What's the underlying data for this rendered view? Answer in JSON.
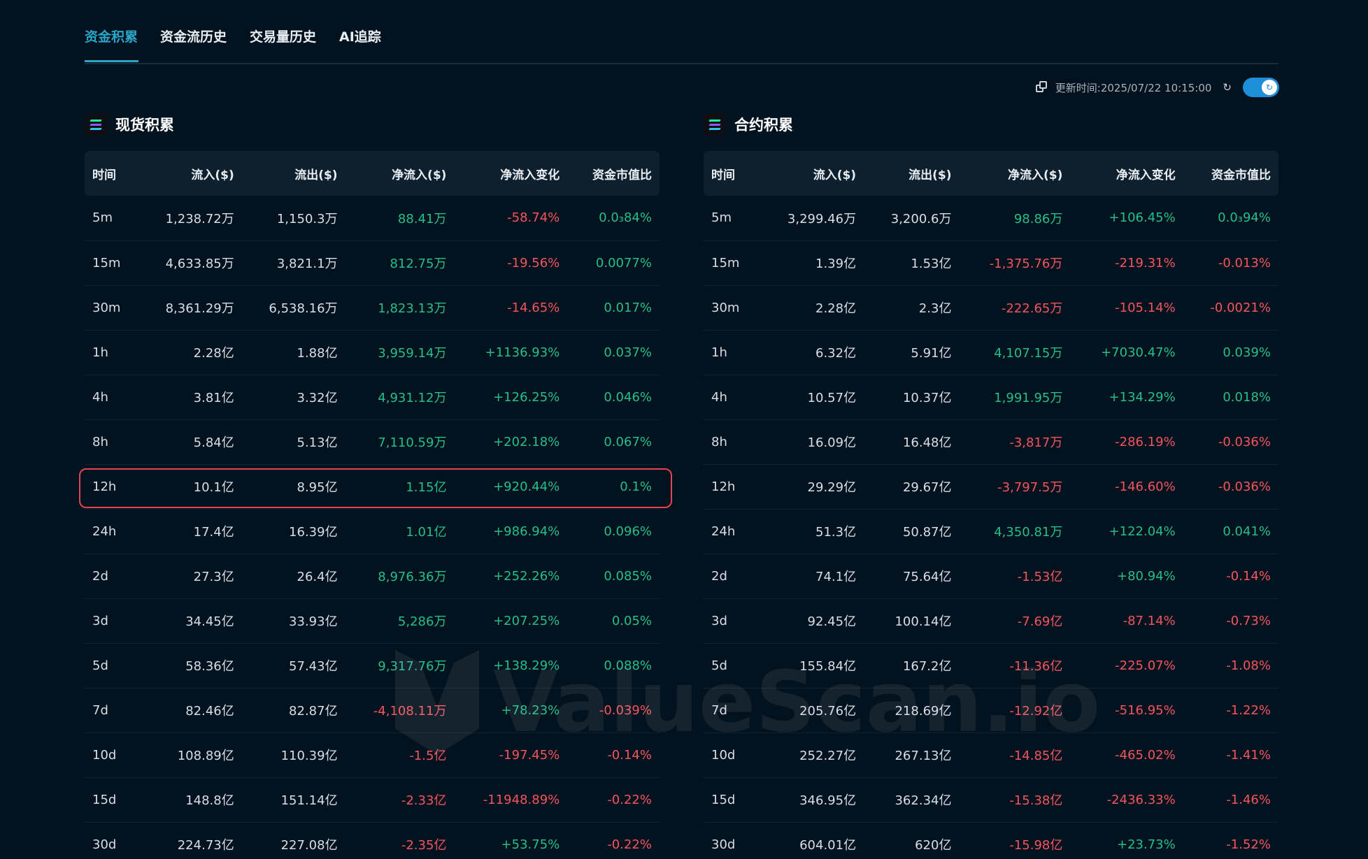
{
  "tabs": [
    "资金积累",
    "资金流历史",
    "交易量历史",
    "AI追踪"
  ],
  "update_label": "更新时间:2025/07/22 10:15:00",
  "watermark": "ValueScan.io",
  "columns": [
    "时间",
    "流入($)",
    "流出($)",
    "净流入($)",
    "净流入变化",
    "资金市值比"
  ],
  "spot": {
    "title": "现货积累",
    "rows": [
      [
        "5m",
        "1,238.72万",
        "1,150.3万",
        "88.41万",
        "-58.74%",
        "0.0₃84%"
      ],
      [
        "15m",
        "4,633.85万",
        "3,821.1万",
        "812.75万",
        "-19.56%",
        "0.0077%"
      ],
      [
        "30m",
        "8,361.29万",
        "6,538.16万",
        "1,823.13万",
        "-14.65%",
        "0.017%"
      ],
      [
        "1h",
        "2.28亿",
        "1.88亿",
        "3,959.14万",
        "+1136.93%",
        "0.037%"
      ],
      [
        "4h",
        "3.81亿",
        "3.32亿",
        "4,931.12万",
        "+126.25%",
        "0.046%"
      ],
      [
        "8h",
        "5.84亿",
        "5.13亿",
        "7,110.59万",
        "+202.18%",
        "0.067%"
      ],
      [
        "12h",
        "10.1亿",
        "8.95亿",
        "1.15亿",
        "+920.44%",
        "0.1%"
      ],
      [
        "24h",
        "17.4亿",
        "16.39亿",
        "1.01亿",
        "+986.94%",
        "0.096%"
      ],
      [
        "2d",
        "27.3亿",
        "26.4亿",
        "8,976.36万",
        "+252.26%",
        "0.085%"
      ],
      [
        "3d",
        "34.45亿",
        "33.93亿",
        "5,286万",
        "+207.25%",
        "0.05%"
      ],
      [
        "5d",
        "58.36亿",
        "57.43亿",
        "9,317.76万",
        "+138.29%",
        "0.088%"
      ],
      [
        "7d",
        "82.46亿",
        "82.87亿",
        "-4,108.11万",
        "+78.23%",
        "-0.039%"
      ],
      [
        "10d",
        "108.89亿",
        "110.39亿",
        "-1.5亿",
        "-197.45%",
        "-0.14%"
      ],
      [
        "15d",
        "148.8亿",
        "151.14亿",
        "-2.33亿",
        "-11948.89%",
        "-0.22%"
      ],
      [
        "30d",
        "224.73亿",
        "227.08亿",
        "-2.35亿",
        "+53.75%",
        "-0.22%"
      ]
    ]
  },
  "futures": {
    "title": "合约积累",
    "rows": [
      [
        "5m",
        "3,299.46万",
        "3,200.6万",
        "98.86万",
        "+106.45%",
        "0.0₃94%"
      ],
      [
        "15m",
        "1.39亿",
        "1.53亿",
        "-1,375.76万",
        "-219.31%",
        "-0.013%"
      ],
      [
        "30m",
        "2.28亿",
        "2.3亿",
        "-222.65万",
        "-105.14%",
        "-0.0021%"
      ],
      [
        "1h",
        "6.32亿",
        "5.91亿",
        "4,107.15万",
        "+7030.47%",
        "0.039%"
      ],
      [
        "4h",
        "10.57亿",
        "10.37亿",
        "1,991.95万",
        "+134.29%",
        "0.018%"
      ],
      [
        "8h",
        "16.09亿",
        "16.48亿",
        "-3,817万",
        "-286.19%",
        "-0.036%"
      ],
      [
        "12h",
        "29.29亿",
        "29.67亿",
        "-3,797.5万",
        "-146.60%",
        "-0.036%"
      ],
      [
        "24h",
        "51.3亿",
        "50.87亿",
        "4,350.81万",
        "+122.04%",
        "0.041%"
      ],
      [
        "2d",
        "74.1亿",
        "75.64亿",
        "-1.53亿",
        "+80.94%",
        "-0.14%"
      ],
      [
        "3d",
        "92.45亿",
        "100.14亿",
        "-7.69亿",
        "-87.14%",
        "-0.73%"
      ],
      [
        "5d",
        "155.84亿",
        "167.2亿",
        "-11.36亿",
        "-225.07%",
        "-1.08%"
      ],
      [
        "7d",
        "205.76亿",
        "218.69亿",
        "-12.92亿",
        "-516.95%",
        "-1.22%"
      ],
      [
        "10d",
        "252.27亿",
        "267.13亿",
        "-14.85亿",
        "-465.02%",
        "-1.41%"
      ],
      [
        "15d",
        "346.95亿",
        "362.34亿",
        "-15.38亿",
        "-2436.33%",
        "-1.46%"
      ],
      [
        "30d",
        "604.01亿",
        "620亿",
        "-15.98亿",
        "+23.73%",
        "-1.52%"
      ]
    ]
  }
}
